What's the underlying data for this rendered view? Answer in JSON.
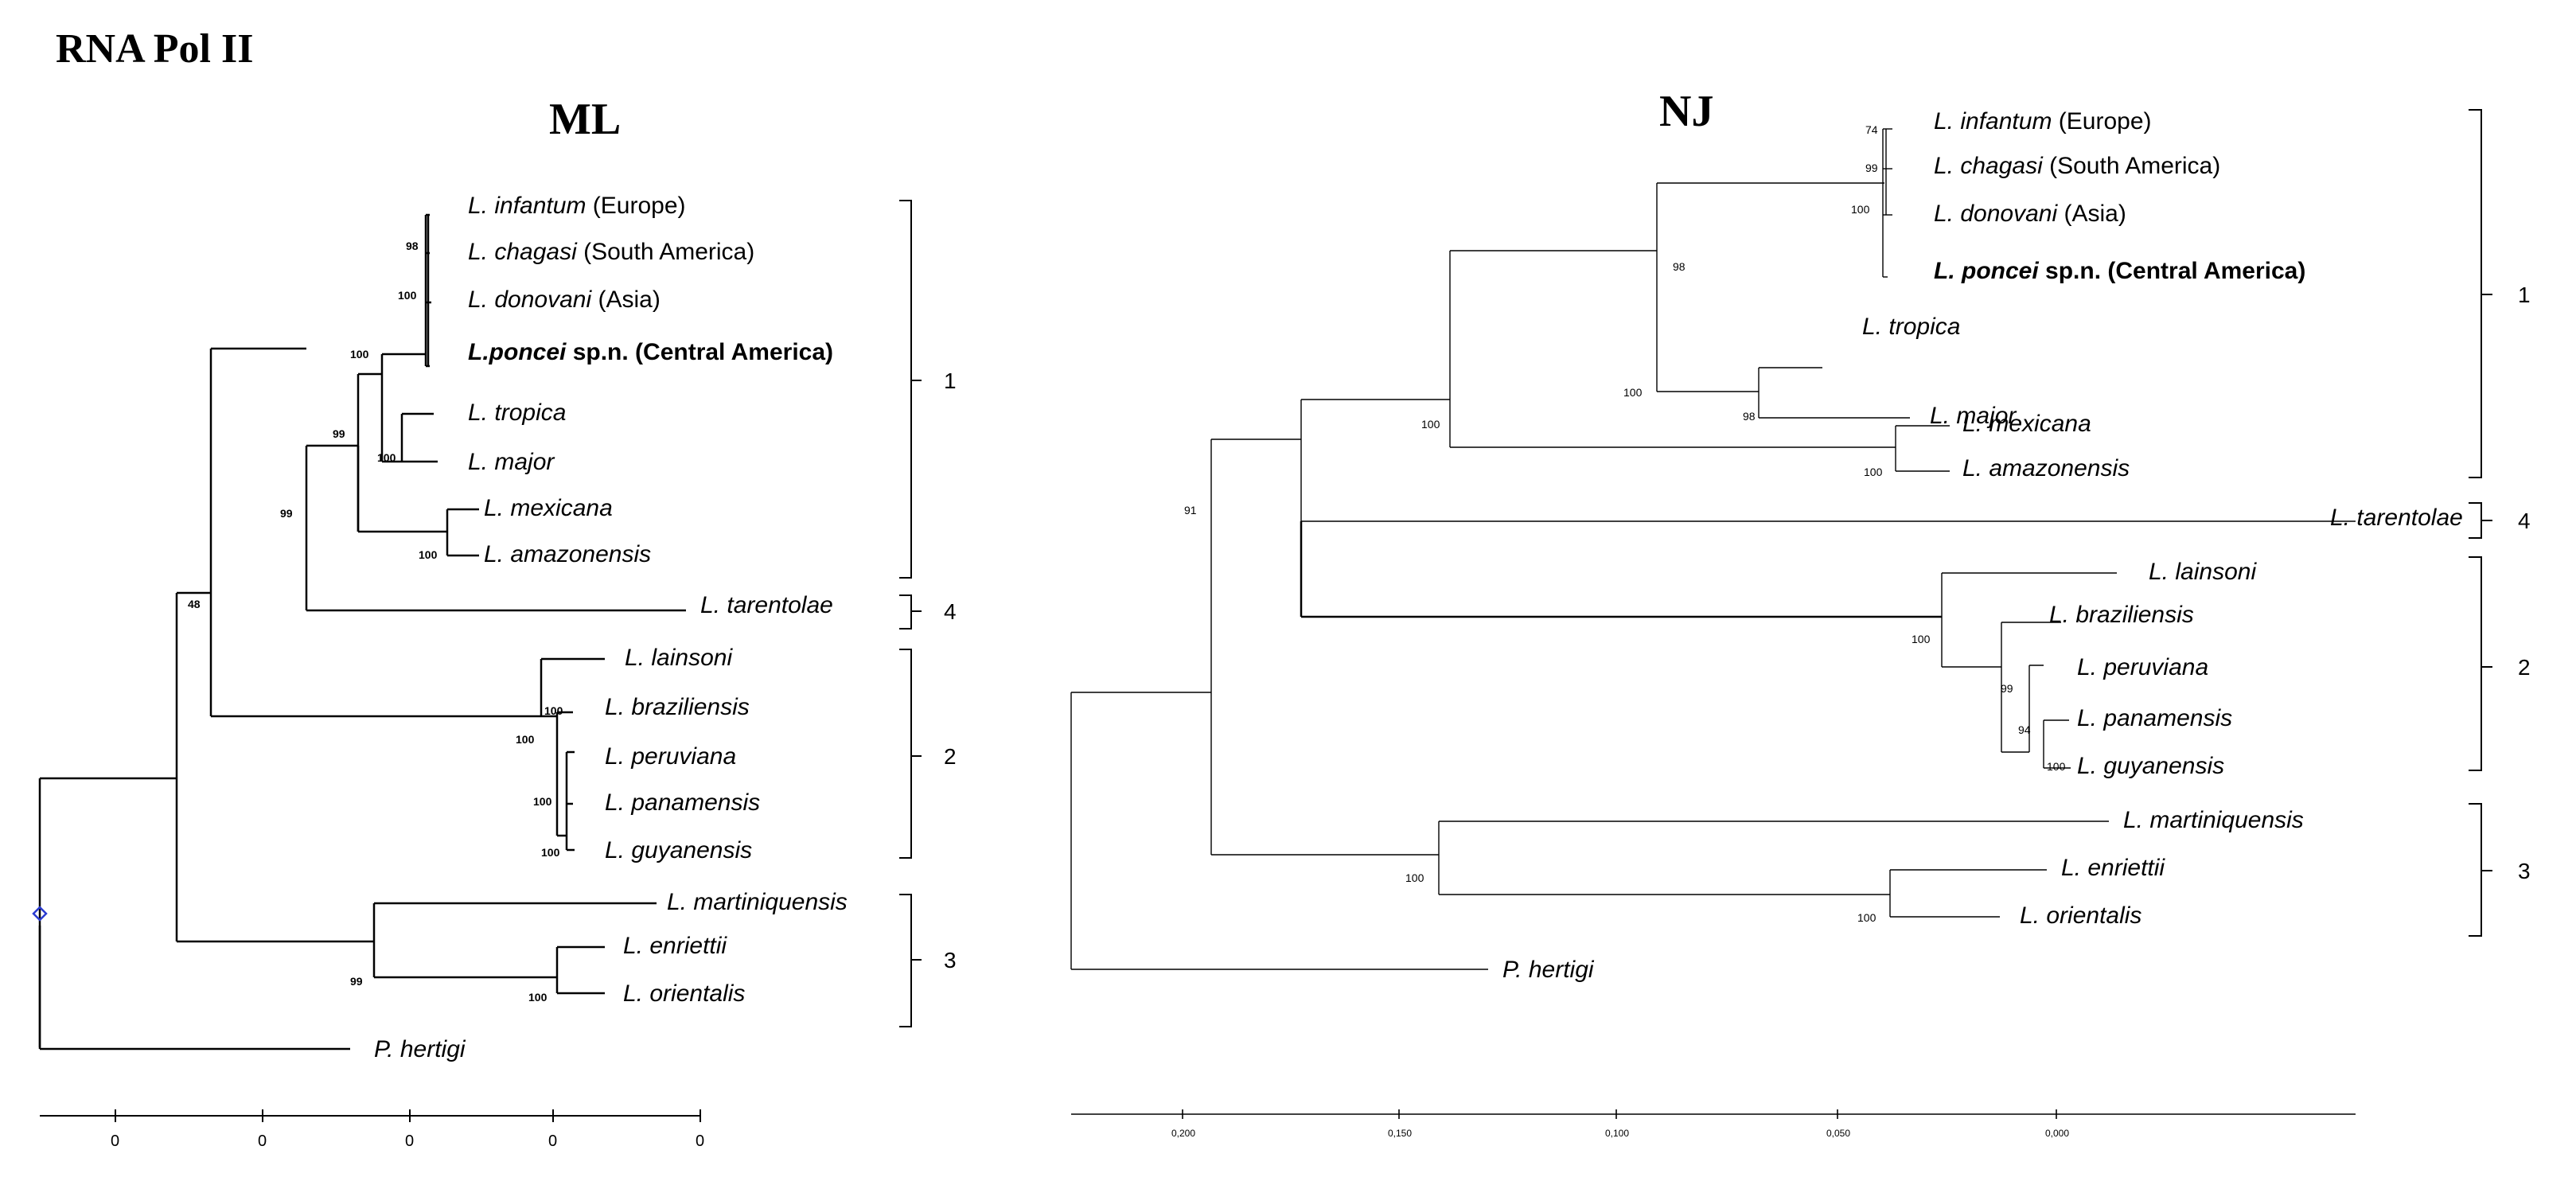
{
  "figure_title": "RNA Pol II",
  "panels": {
    "ml": {
      "title": "ML",
      "taxa": [
        {
          "genus": "L.",
          "species": "infantum",
          "note": "(Europe)"
        },
        {
          "genus": "L.",
          "species": "chagasi",
          "note": "(South America)"
        },
        {
          "genus": "L.",
          "species": "donovani",
          "note": "(Asia)"
        },
        {
          "genus": "L.",
          "species": "poncei",
          "note": "sp.n. (Central America)",
          "bold": true,
          "joined": true
        },
        {
          "genus": "L.",
          "species": "tropica",
          "note": ""
        },
        {
          "genus": "L.",
          "species": "major",
          "note": ""
        },
        {
          "genus": "L.",
          "species": "mexicana",
          "note": ""
        },
        {
          "genus": "L.",
          "species": "amazonensis",
          "note": ""
        },
        {
          "genus": "L.",
          "species": "tarentolae",
          "note": ""
        },
        {
          "genus": "L.",
          "species": "lainsoni",
          "note": ""
        },
        {
          "genus": "L.",
          "species": "braziliensis",
          "note": ""
        },
        {
          "genus": "L.",
          "species": "peruviana",
          "note": ""
        },
        {
          "genus": "L.",
          "species": "panamensis",
          "note": ""
        },
        {
          "genus": "L.",
          "species": "guyanensis",
          "note": ""
        },
        {
          "genus": "L.",
          "species": "martiniquensis",
          "note": ""
        },
        {
          "genus": "L.",
          "species": "enriettii",
          "note": ""
        },
        {
          "genus": "L.",
          "species": "orientalis",
          "note": ""
        },
        {
          "genus": "P.",
          "species": "hertigi",
          "note": ""
        }
      ],
      "bootstrap": [
        "98",
        "100",
        "100",
        "100",
        "99",
        "100",
        "99",
        "48",
        "100",
        "100",
        "100",
        "100",
        "99",
        "100"
      ],
      "clades": [
        "1",
        "4",
        "2",
        "3"
      ],
      "axis_ticks": [
        "0",
        "0",
        "0",
        "0",
        "0"
      ]
    },
    "nj": {
      "title": "NJ",
      "taxa": [
        {
          "genus": "L.",
          "species": "infantum",
          "note": "(Europe)"
        },
        {
          "genus": "L.",
          "species": "chagasi",
          "note": "(South America)"
        },
        {
          "genus": "L.",
          "species": "donovani",
          "note": "(Asia)"
        },
        {
          "genus": "L.",
          "species": "poncei",
          "note": "sp.n. (Central America)",
          "bold": true
        },
        {
          "genus": "L.",
          "species": "tropica",
          "note": ""
        },
        {
          "genus": "L.",
          "species": "major",
          "note": ""
        },
        {
          "genus": "L.",
          "species": "mexicana",
          "note": ""
        },
        {
          "genus": "L.",
          "species": "amazonensis",
          "note": ""
        },
        {
          "genus": "L.",
          "species": "tarentolae",
          "note": ""
        },
        {
          "genus": "L.",
          "species": "lainsoni",
          "note": ""
        },
        {
          "genus": "L.",
          "species": "braziliensis",
          "note": ""
        },
        {
          "genus": "L.",
          "species": "peruviana",
          "note": ""
        },
        {
          "genus": "L.",
          "species": "panamensis",
          "note": ""
        },
        {
          "genus": "L.",
          "species": "guyanensis",
          "note": ""
        },
        {
          "genus": "L.",
          "species": "martiniquensis",
          "note": ""
        },
        {
          "genus": "L.",
          "species": "enriettii",
          "note": ""
        },
        {
          "genus": "L.",
          "species": "orientalis",
          "note": ""
        },
        {
          "genus": "P.",
          "species": "hertigi",
          "note": ""
        }
      ],
      "bootstrap": [
        "74",
        "99",
        "100",
        "98",
        "100",
        "98",
        "100",
        "100",
        "91",
        "100",
        "99",
        "94",
        "100",
        "100",
        "100"
      ],
      "clades": [
        "1",
        "4",
        "2",
        "3"
      ],
      "axis_ticks": [
        "0,200",
        "0,150",
        "0,100",
        "0,050",
        "0,000"
      ]
    }
  }
}
